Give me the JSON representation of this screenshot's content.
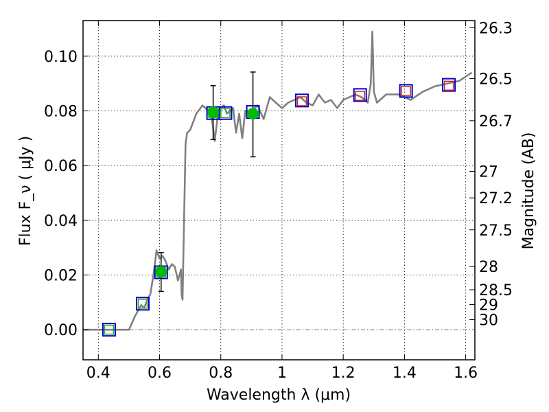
{
  "chart_data": {
    "type": "scatter",
    "title": "",
    "xlabel": "Wavelength  λ (μm)",
    "ylabel": "Flux  F_ν  ( μJy )",
    "ylabel_right": "Magnitude (AB)",
    "xlim": [
      0.35,
      1.63
    ],
    "ylim": [
      -0.011,
      0.113
    ],
    "grid": true,
    "x_ticks": [
      0.4,
      0.6,
      0.8,
      1.0,
      1.2,
      1.4,
      1.6
    ],
    "x_tick_labels": [
      "0.4",
      "0.6",
      "0.8",
      "1",
      "1.2",
      "1.4",
      "1.6"
    ],
    "y_ticks": [
      0.0,
      0.02,
      0.04,
      0.06,
      0.08,
      0.1
    ],
    "y_tick_labels": [
      "0.00",
      "0.02",
      "0.04",
      "0.06",
      "0.08",
      "0.10"
    ],
    "right_ticks": [
      {
        "label": "26.3",
        "flux": 0.1104
      },
      {
        "label": "26.5",
        "flux": 0.0918
      },
      {
        "label": "26.7",
        "flux": 0.0764
      },
      {
        "label": "27",
        "flux": 0.0579
      },
      {
        "label": "27.2",
        "flux": 0.0482
      },
      {
        "label": "27.5",
        "flux": 0.0365
      },
      {
        "label": "28",
        "flux": 0.0231
      },
      {
        "label": "28.5",
        "flux": 0.0146
      },
      {
        "label": "29",
        "flux": 0.0092
      },
      {
        "label": "30",
        "flux": 0.0037
      }
    ],
    "series": [
      {
        "name": "model spectrum",
        "style": "line",
        "color": "#808080",
        "x": [
          0.35,
          0.5,
          0.52,
          0.54,
          0.55,
          0.56,
          0.57,
          0.58,
          0.59,
          0.6,
          0.61,
          0.62,
          0.63,
          0.64,
          0.65,
          0.66,
          0.67,
          0.672,
          0.675,
          0.68,
          0.685,
          0.69,
          0.7,
          0.72,
          0.74,
          0.75,
          0.76,
          0.77,
          0.78,
          0.79,
          0.8,
          0.81,
          0.82,
          0.84,
          0.85,
          0.86,
          0.87,
          0.88,
          0.9,
          0.92,
          0.94,
          0.96,
          0.98,
          1.0,
          1.02,
          1.04,
          1.06,
          1.08,
          1.1,
          1.12,
          1.14,
          1.16,
          1.18,
          1.2,
          1.22,
          1.24,
          1.26,
          1.28,
          1.29,
          1.295,
          1.3,
          1.31,
          1.34,
          1.38,
          1.42,
          1.46,
          1.5,
          1.54,
          1.58,
          1.62
        ],
        "y": [
          0.0,
          0.0,
          0.005,
          0.009,
          0.008,
          0.011,
          0.013,
          0.02,
          0.029,
          0.026,
          0.027,
          0.025,
          0.022,
          0.024,
          0.023,
          0.018,
          0.022,
          0.013,
          0.011,
          0.04,
          0.068,
          0.072,
          0.073,
          0.079,
          0.082,
          0.081,
          0.08,
          0.078,
          0.069,
          0.078,
          0.081,
          0.082,
          0.079,
          0.081,
          0.072,
          0.079,
          0.07,
          0.08,
          0.08,
          0.082,
          0.077,
          0.085,
          0.083,
          0.081,
          0.083,
          0.084,
          0.085,
          0.083,
          0.082,
          0.086,
          0.083,
          0.084,
          0.081,
          0.084,
          0.085,
          0.086,
          0.085,
          0.083,
          0.09,
          0.109,
          0.087,
          0.083,
          0.086,
          0.086,
          0.084,
          0.087,
          0.089,
          0.09,
          0.091,
          0.094
        ]
      },
      {
        "name": "photometry (blue squares)",
        "style": "marker",
        "marker": "square-open",
        "color": "#0000cc",
        "x": [
          0.435,
          0.545,
          0.605,
          0.775,
          0.815,
          0.905,
          1.065,
          1.255,
          1.405,
          1.545
        ],
        "y": [
          0.0,
          0.0095,
          0.021,
          0.0792,
          0.0792,
          0.0796,
          0.0838,
          0.0858,
          0.0873,
          0.0895
        ]
      },
      {
        "name": "model synthetic (green squares)",
        "style": "marker",
        "marker": "square-open",
        "color": "#22aa22",
        "x": [
          0.435,
          0.545,
          0.605,
          0.775,
          0.815
        ],
        "y": [
          0.0,
          0.0095,
          0.021,
          0.0792,
          0.0792
        ]
      },
      {
        "name": "model synthetic (red squares)",
        "style": "marker",
        "marker": "square-open",
        "color": "#cc2222",
        "x": [
          1.065,
          1.255,
          1.405,
          1.545
        ],
        "y": [
          0.0835,
          0.0855,
          0.0873,
          0.0892
        ]
      },
      {
        "name": "detections with error bars",
        "style": "marker",
        "marker": "circle-filled",
        "color": "#00bb00",
        "x": [
          0.605,
          0.775,
          0.905
        ],
        "y": [
          0.0212,
          0.0795,
          0.079
        ],
        "yerr_low": [
          0.014,
          0.0695,
          0.0632
        ],
        "yerr_high": [
          0.0282,
          0.0892,
          0.0942
        ]
      }
    ],
    "reference_line": {
      "y": 0.0,
      "style": "dash-dot",
      "color": "#808080"
    }
  }
}
